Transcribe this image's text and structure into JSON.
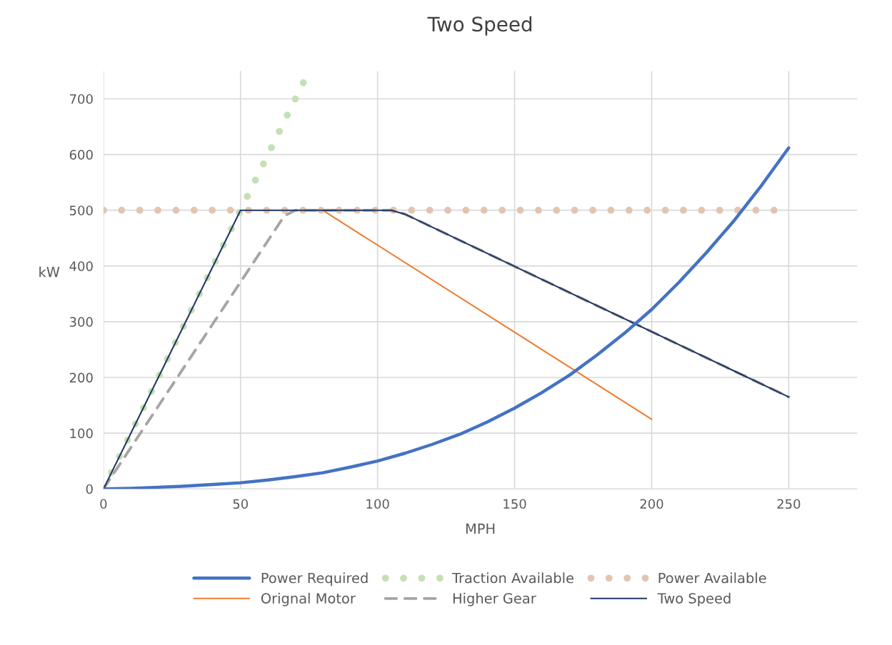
{
  "chart_data": {
    "type": "line",
    "title": "Two Speed",
    "xlabel": "MPH",
    "ylabel": "kW",
    "xlim": [
      0,
      275
    ],
    "ylim": [
      0,
      750
    ],
    "xticks": [
      0,
      50,
      100,
      150,
      200,
      250
    ],
    "yticks": [
      0,
      100,
      200,
      300,
      400,
      500,
      600,
      700
    ],
    "grid": true,
    "legend": "bottom",
    "marker": "none",
    "series": [
      {
        "name": "Power Required",
        "color": "#4472c4",
        "line_style": "solid",
        "x": [
          0,
          10,
          20,
          30,
          40,
          50,
          60,
          70,
          80,
          90,
          100,
          110,
          120,
          130,
          140,
          150,
          160,
          170,
          180,
          190,
          200,
          210,
          220,
          230,
          240,
          250
        ],
        "values": [
          0,
          1,
          3,
          5,
          8,
          11,
          16,
          22,
          29,
          39,
          50,
          64,
          80,
          98,
          120,
          145,
          173,
          204,
          240,
          279,
          322,
          371,
          424,
          481,
          544,
          612
        ]
      },
      {
        "name": "Traction Available",
        "color": "#c5e0b4",
        "line_style": "dotted",
        "x": [
          0,
          74
        ],
        "values": [
          0,
          740
        ]
      },
      {
        "name": "Power Available",
        "color": "#e2c4b0",
        "line_style": "dotted",
        "x": [
          0,
          245
        ],
        "values": [
          500,
          500
        ]
      },
      {
        "name": "Orignal Motor",
        "color": "#ed7d31",
        "line_style": "solid",
        "x": [
          80,
          200
        ],
        "values": [
          500,
          125
        ]
      },
      {
        "name": "Higher Gear",
        "color": "#a5a5a5",
        "line_style": "dashed",
        "x": [
          0,
          66,
          70,
          105,
          110,
          250
        ],
        "values": [
          0,
          490,
          500,
          500,
          493,
          165
        ]
      },
      {
        "name": "Two Speed",
        "color": "#203864",
        "line_style": "solid",
        "x": [
          0,
          50,
          105,
          110,
          250
        ],
        "values": [
          0,
          500,
          500,
          493,
          165
        ]
      }
    ]
  }
}
